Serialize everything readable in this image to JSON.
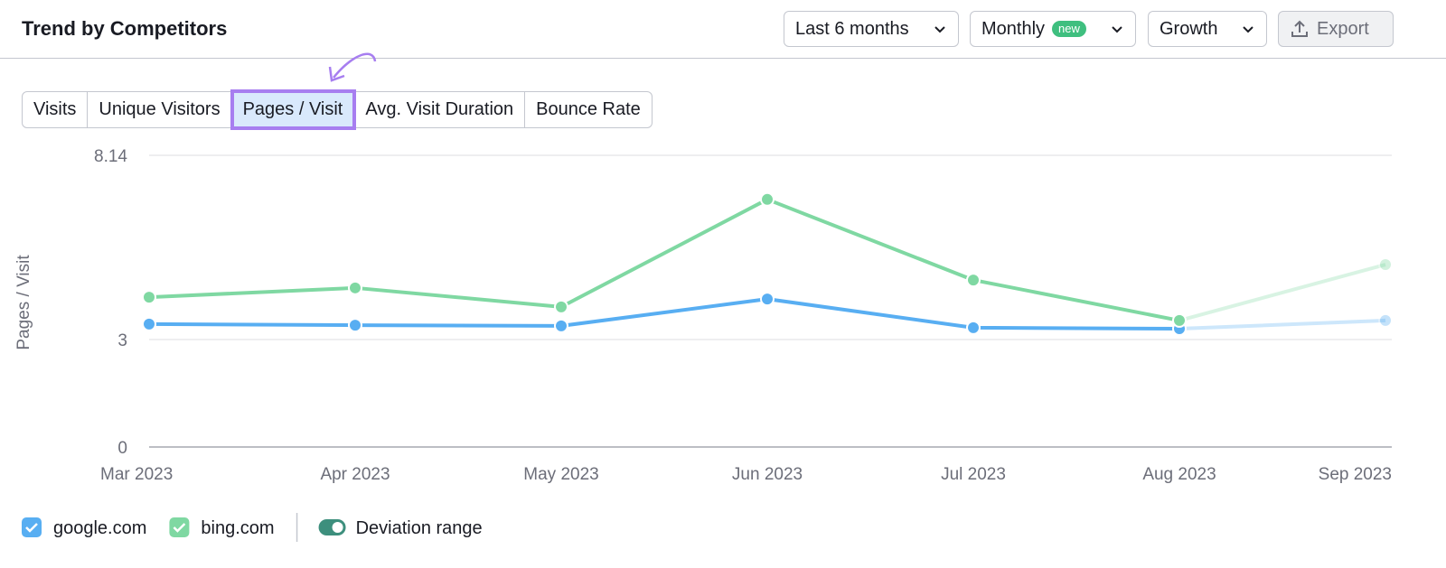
{
  "header": {
    "title": "Trend by Competitors",
    "controls": [
      "Last 6 months",
      "Monthly",
      "Growth"
    ],
    "badge": "new",
    "export": "Export"
  },
  "tabs": [
    "Visits",
    "Unique Visitors",
    "Pages / Visit",
    "Avg. Visit Duration",
    "Bounce Rate"
  ],
  "chart_data": {
    "type": "line",
    "y_label": "Pages / Visit",
    "categories": [
      "Mar 2023",
      "Apr 2023",
      "May 2023",
      "Jun 2023",
      "Jul 2023",
      "Aug 2023",
      "Sep 2023"
    ],
    "series": [
      {
        "name": "google.com",
        "color": "#58aef2",
        "values": [
          3.43,
          3.4,
          3.38,
          4.13,
          3.33,
          3.3,
          3.53
        ]
      },
      {
        "name": "bing.com",
        "color": "#7fd8a2",
        "values": [
          4.18,
          4.44,
          3.91,
          6.91,
          4.66,
          3.53,
          5.09
        ]
      }
    ],
    "ylim": [
      0,
      8.14
    ],
    "yticks": [
      0,
      3,
      8.14
    ],
    "grid": true
  },
  "legend": {
    "toggle": "Deviation range"
  }
}
